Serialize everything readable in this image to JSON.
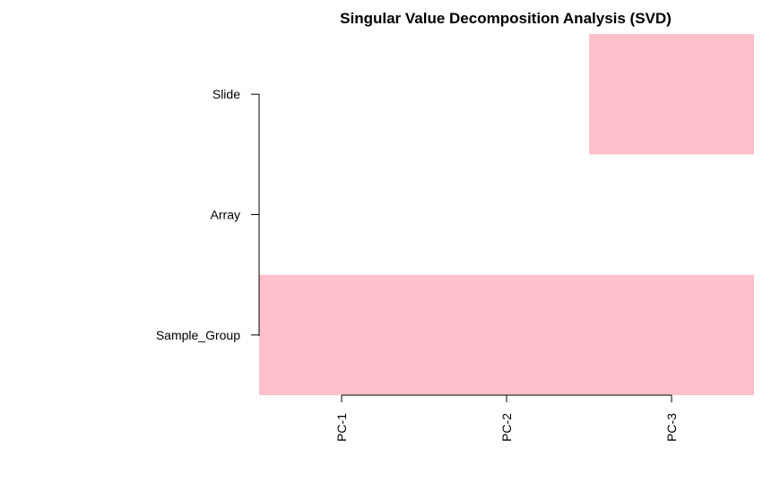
{
  "chart_data": {
    "type": "heatmap",
    "title": "Singular Value Decomposition Analysis (SVD)",
    "x_categories": [
      "PC-1",
      "PC-2",
      "PC-3"
    ],
    "y_categories": [
      "Sample_Group",
      "Array",
      "Slide"
    ],
    "colors": {
      "significant": "#ffc0cb",
      "not_significant": "#ffffff"
    },
    "cells": [
      [
        1,
        1,
        1
      ],
      [
        0,
        0,
        0
      ],
      [
        0,
        0,
        1
      ]
    ]
  }
}
